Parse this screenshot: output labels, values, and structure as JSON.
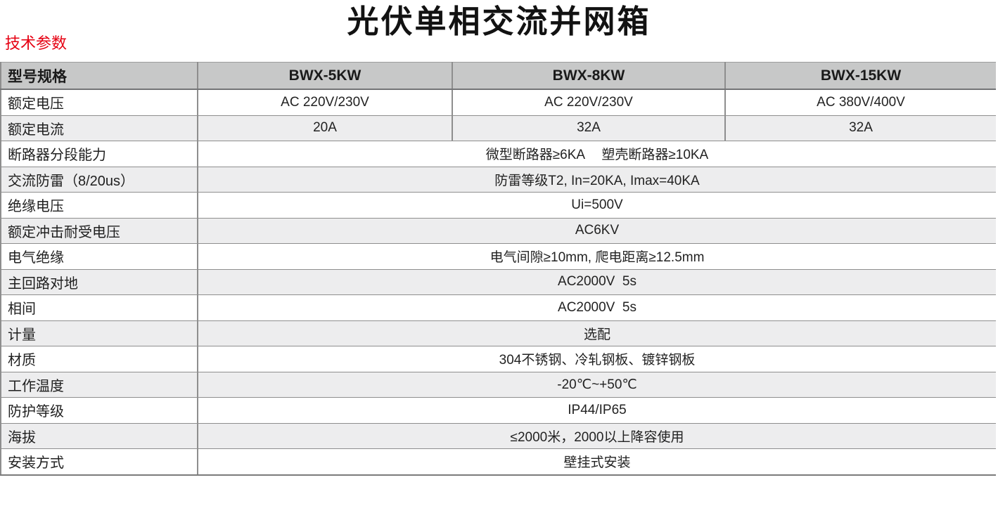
{
  "page": {
    "title": "光伏单相交流并网箱",
    "section_label": "技术参数"
  },
  "colors": {
    "accent_red": "#e60012",
    "header_bg": "#c7c8c8",
    "stripe_bg": "#ededee",
    "grid_line": "#8e8e8e",
    "text": "#1f1f1f"
  },
  "table": {
    "header": {
      "param": "型号规格",
      "models": [
        "BWX-5KW",
        "BWX-8KW",
        "BWX-15KW"
      ]
    },
    "rows": [
      {
        "label": "额定电压",
        "values": [
          "AC 220V/230V",
          "AC 220V/230V",
          "AC 380V/400V"
        ]
      },
      {
        "label": "额定电流",
        "values": [
          "20A",
          "32A",
          "32A"
        ]
      },
      {
        "label": "断路器分段能力",
        "merged": "微型断路器≥6KA　 塑壳断路器≥10KA"
      },
      {
        "label": "交流防雷（8/20us）",
        "merged": "防雷等级T2, In=20KA, Imax=40KA"
      },
      {
        "label": "绝缘电压",
        "merged": "Ui=500V"
      },
      {
        "label": "额定冲击耐受电压",
        "merged": "AC6KV"
      },
      {
        "label": "电气绝缘",
        "merged": "电气间隙≥10mm, 爬电距离≥12.5mm"
      },
      {
        "label": "主回路对地",
        "merged": "AC2000V  5s"
      },
      {
        "label": "相间",
        "merged": "AC2000V  5s"
      },
      {
        "label": "计量",
        "merged": "选配"
      },
      {
        "label": "材质",
        "merged": "304不锈钢、冷轧钢板、镀锌钢板"
      },
      {
        "label": "工作温度",
        "merged": "-20℃~+50℃"
      },
      {
        "label": "防护等级",
        "merged": "IP44/IP65"
      },
      {
        "label": "海拔",
        "merged": "≤2000米，2000以上降容使用"
      },
      {
        "label": "安装方式",
        "merged": "壁挂式安装"
      }
    ]
  }
}
